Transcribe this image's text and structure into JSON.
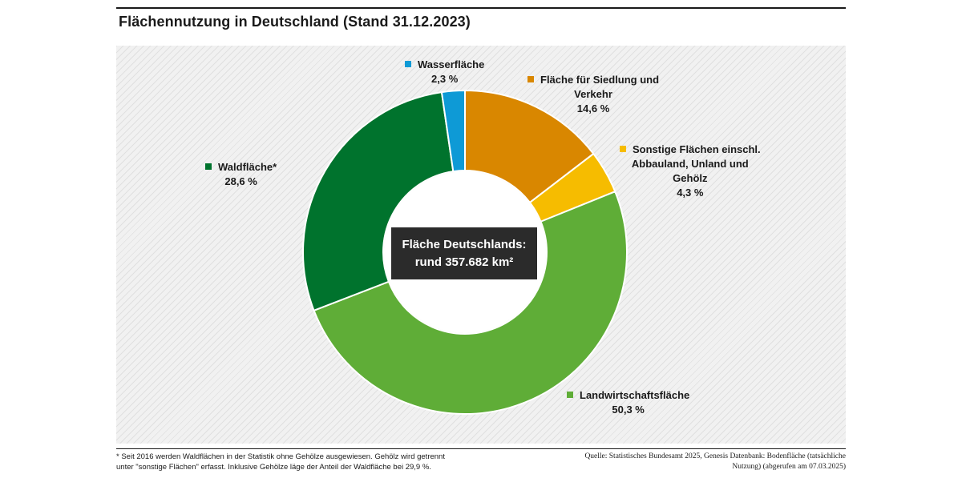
{
  "chart_data": {
    "type": "pie",
    "title": "Flächennutzung in Deutschland (Stand 31.12.2023)",
    "categories": [
      "Fläche für Siedlung und Verkehr",
      "Sonstige Flächen einschl. Abbauland, Unland und Gehölz",
      "Landwirtschaftsfläche",
      "Waldfläche*",
      "Wasserfläche"
    ],
    "values": [
      14.6,
      4.3,
      50.3,
      28.6,
      2.3
    ],
    "value_labels": [
      "14,6 %",
      "4,3 %",
      "50,3 %",
      "28,6 %",
      "2,3 %"
    ],
    "colors": [
      "#d98700",
      "#f6bc00",
      "#5fad37",
      "#00732d",
      "#0e9ad6"
    ],
    "center_label": [
      "Fläche Deutschlands:",
      "rund 357.682 km²"
    ]
  },
  "legend": {
    "wasser": {
      "name": "Wasserfläche",
      "value": "2,3 %"
    },
    "siedlung": {
      "name_line1": "Fläche für Siedlung und",
      "name_line2": "Verkehr",
      "value": "14,6 %"
    },
    "sonstige": {
      "name_line1": "Sonstige Flächen einschl.",
      "name_line2": "Abbauland, Unland und",
      "name_line3": "Gehölz",
      "value": "4,3 %"
    },
    "wald": {
      "name": "Waldfläche*",
      "value": "28,6 %"
    },
    "landwirtschaft": {
      "name": "Landwirtschaftsfläche",
      "value": "50,3 %"
    }
  },
  "footnote": {
    "line1": "* Seit 2016 werden Waldflächen in der Statistik ohne Gehölze ausgewiesen. Gehölz wird getrennt",
    "line2": "unter \"sonstige Flächen\" erfasst. Inklusive Gehölze läge der Anteil der Waldfläche bei 29,9 %."
  },
  "source": {
    "line1": "Quelle: Statistisches Bundesamt 2025, Genesis Datenbank: Bodenfläche (tatsächliche",
    "line2": "Nutzung) (abgerufen am 07.03.2025)"
  }
}
